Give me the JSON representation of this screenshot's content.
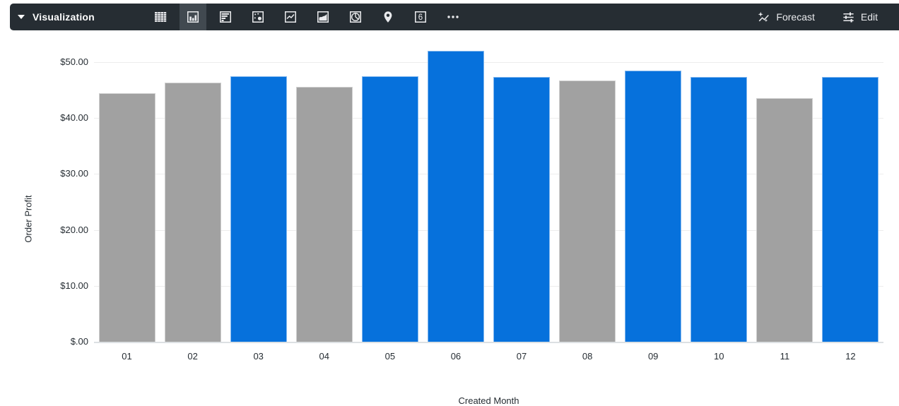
{
  "toolbar": {
    "title": "Visualization",
    "forecast_label": "Forecast",
    "edit_label": "Edit",
    "single_value_glyph": "6",
    "viz_type_icons": [
      "table",
      "column",
      "bar-horizontal",
      "scatter",
      "line",
      "area",
      "pie",
      "map",
      "single-value",
      "more"
    ],
    "selected_viz_type": "column",
    "colors": {
      "background": "#262D33",
      "selected_background": "#414950",
      "icon": "#E9EAED"
    }
  },
  "chart_data": {
    "type": "bar",
    "title": "",
    "xlabel": "Created Month",
    "ylabel": "Order Profit",
    "categories": [
      "01",
      "02",
      "03",
      "04",
      "05",
      "06",
      "07",
      "08",
      "09",
      "10",
      "11",
      "12"
    ],
    "values": [
      44.5,
      46.4,
      47.5,
      45.6,
      47.5,
      52.0,
      47.3,
      46.7,
      48.5,
      47.3,
      43.6,
      47.3
    ],
    "bar_colors": [
      "#A1A1A1",
      "#A1A1A1",
      "#0671DC",
      "#A1A1A1",
      "#0671DC",
      "#0671DC",
      "#0671DC",
      "#A1A1A1",
      "#0671DC",
      "#0671DC",
      "#A1A1A1",
      "#0671DC"
    ],
    "series_colors": {
      "gray": "#A1A1A1",
      "blue": "#0671DC"
    },
    "y_axis": {
      "ticks": [
        {
          "value": 0,
          "label": "$.00"
        },
        {
          "value": 10,
          "label": "$10.00"
        },
        {
          "value": 20,
          "label": "$20.00"
        },
        {
          "value": 30,
          "label": "$30.00"
        },
        {
          "value": 40,
          "label": "$40.00"
        },
        {
          "value": 50,
          "label": "$50.00"
        }
      ]
    },
    "ylim": [
      0,
      54
    ],
    "grid": true,
    "legend": "none"
  }
}
